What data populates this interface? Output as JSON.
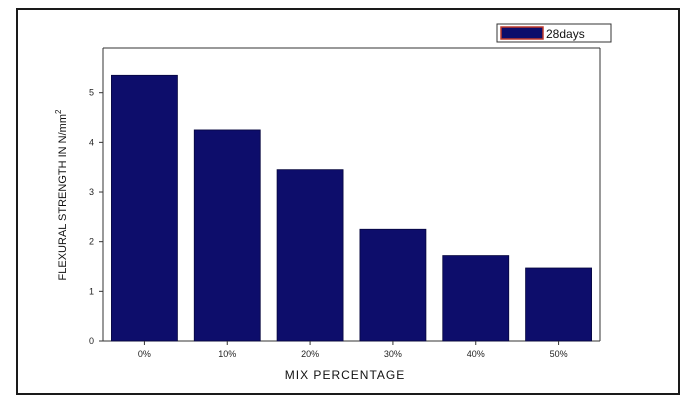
{
  "chart_data": {
    "type": "bar",
    "categories": [
      "0%",
      "10%",
      "20%",
      "30%",
      "40%",
      "50%"
    ],
    "series": [
      {
        "name": "28days",
        "values": [
          5.35,
          4.25,
          3.45,
          2.25,
          1.72,
          1.47
        ]
      }
    ],
    "xlabel": "MIX PERCENTAGE",
    "ylabel": "FLEXURAL STRENGTH IN N/mm",
    "ylabel_superscript": "2",
    "ylim": [
      0,
      5.9
    ],
    "yticks": [
      "0",
      "1",
      "2",
      "3",
      "4",
      "5"
    ],
    "grid": false,
    "legend_position": "top-right",
    "colors": {
      "bar": "#0d0d6b",
      "legend_border": "#c0392b",
      "axis": "#333333"
    }
  }
}
